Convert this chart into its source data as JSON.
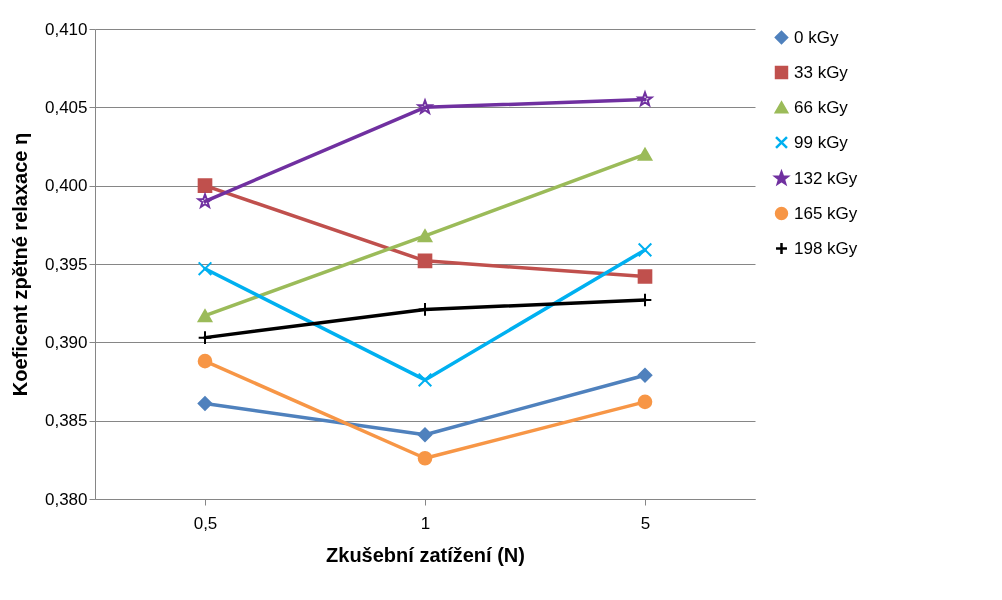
{
  "chart_data": {
    "type": "line",
    "xlabel": "Zkušební zatížení (N)",
    "ylabel": "Koeficent zpětné relaxace η",
    "categories": [
      "0,5",
      "1",
      "5"
    ],
    "series": [
      {
        "name": "0 kGy",
        "color": "#4f81bd",
        "marker": "diamond",
        "values": [
          0.3861,
          0.3841,
          0.3879
        ]
      },
      {
        "name": "33 kGy",
        "color": "#c0504d",
        "marker": "square",
        "values": [
          0.4,
          0.3952,
          0.3942
        ]
      },
      {
        "name": "66 kGy",
        "color": "#9bbb59",
        "marker": "triangle",
        "values": [
          0.3917,
          0.3968,
          0.402
        ]
      },
      {
        "name": "99 kGy",
        "color": "#00b0f0",
        "marker": "cross",
        "values": [
          0.3947,
          0.3876,
          0.3959
        ]
      },
      {
        "name": "132 kGy",
        "color": "#7030a0",
        "marker": "star",
        "values": [
          0.399,
          0.405,
          0.4055
        ]
      },
      {
        "name": "165 kGy",
        "color": "#f79646",
        "marker": "circle",
        "values": [
          0.3888,
          0.3826,
          0.3862
        ]
      },
      {
        "name": "198 kGy",
        "color": "#000000",
        "marker": "plus",
        "values": [
          0.3903,
          0.3921,
          0.3927
        ]
      }
    ],
    "ylim": [
      0.38,
      0.41
    ],
    "yticks": [
      {
        "value": 0.38,
        "label": "0,380"
      },
      {
        "value": 0.385,
        "label": "0,385"
      },
      {
        "value": 0.39,
        "label": "0,390"
      },
      {
        "value": 0.395,
        "label": "0,395"
      },
      {
        "value": 0.4,
        "label": "0,400"
      },
      {
        "value": 0.405,
        "label": "0,405"
      },
      {
        "value": 0.41,
        "label": "0,410"
      }
    ],
    "grid": "y",
    "legend": "right",
    "line_style": "solid"
  }
}
